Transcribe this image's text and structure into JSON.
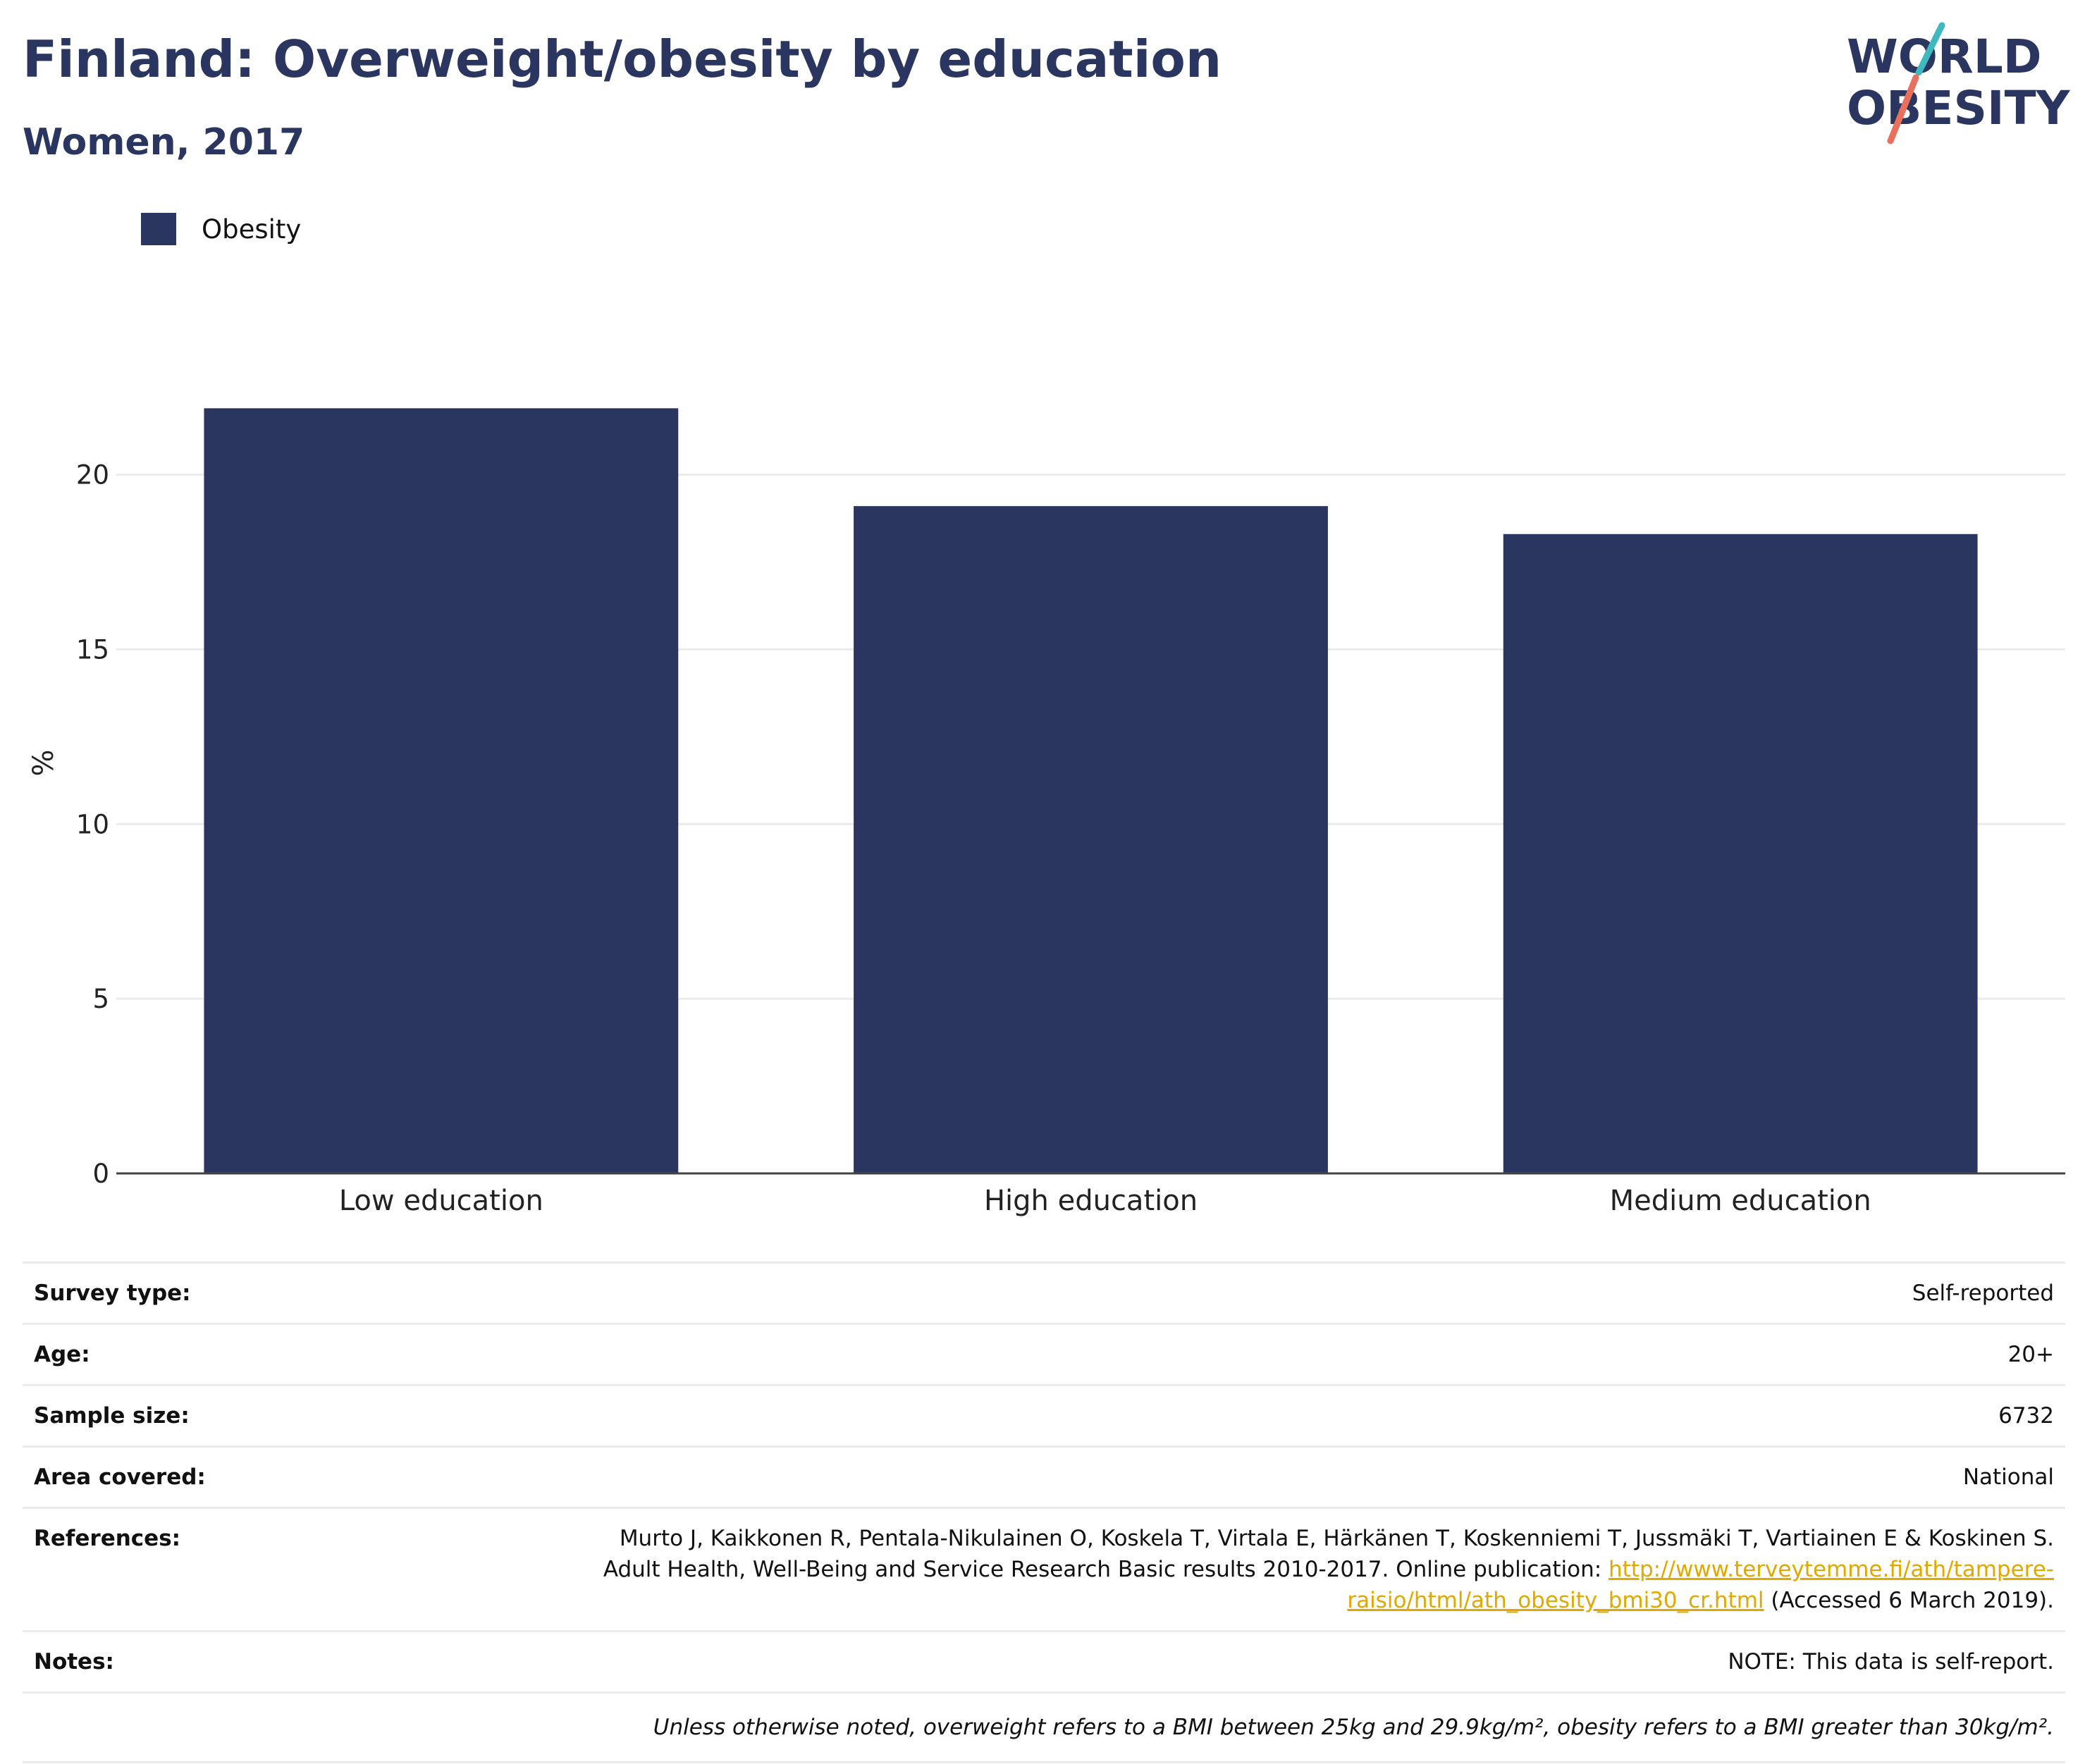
{
  "header": {
    "title": "Finland: Overweight/obesity by education",
    "subtitle": "Women, 2017"
  },
  "logo": {
    "line1": "WORLD",
    "line2": "OBESITY",
    "colors": {
      "text": "#2a3660",
      "slash_teal": "#3fb8be",
      "slash_coral": "#e8705c"
    }
  },
  "legend": {
    "items": [
      {
        "label": "Obesity",
        "color": "#2a3660"
      }
    ]
  },
  "chart_data": {
    "type": "bar",
    "categories": [
      "Low education",
      "High education",
      "Medium education"
    ],
    "series": [
      {
        "name": "Obesity",
        "values": [
          21.9,
          19.1,
          18.3
        ],
        "color": "#2a3660"
      }
    ],
    "ylabel": "%",
    "xlabel": "",
    "ylim": [
      0,
      23.5
    ],
    "yticks": [
      0,
      5,
      10,
      15,
      20
    ],
    "grid": true,
    "legend_position": "top-left"
  },
  "info_table": {
    "survey_type": {
      "label": "Survey type:",
      "value": "Self-reported"
    },
    "age": {
      "label": "Age:",
      "value": "20+"
    },
    "sample_size": {
      "label": "Sample size:",
      "value": "6732"
    },
    "area_covered": {
      "label": "Area covered:",
      "value": "National"
    },
    "references": {
      "label": "References:",
      "line1": "Murto J, Kaikkonen R, Pentala-Nikulainen O, Koskela T, Virtala E, Härkänen T, Koskenniemi T, Jussmäki T, Vartiainen E & Koskinen S.",
      "line2_text": "Adult Health, Well-Being and Service Research Basic results 2010-2017. Online publication: ",
      "link_part1": "http://www.terveytemme.fi/ath/tampere-",
      "link_part2": "raisio/html/ath_obesity_bmi30_cr.html",
      "accessed": " (Accessed 6 March 2019)."
    },
    "notes": {
      "label": "Notes:",
      "value": "NOTE: This data is self-report."
    },
    "footnote": "Unless otherwise noted, overweight refers to a BMI between 25kg and 29.9kg/m², obesity refers to a BMI greater than 30kg/m²."
  }
}
